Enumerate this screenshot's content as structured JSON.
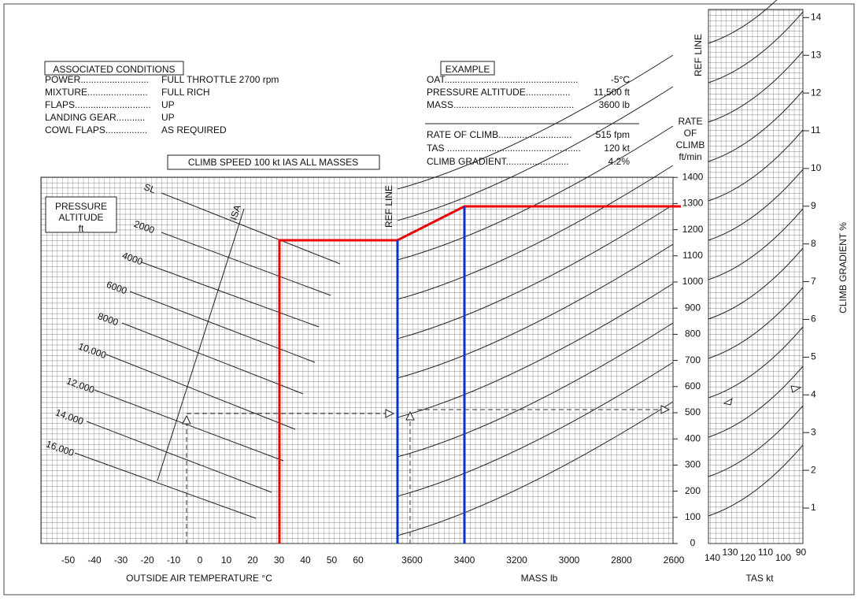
{
  "conditions": {
    "title": "ASSOCIATED CONDITIONS",
    "rows": [
      [
        "POWER..........................",
        "FULL THROTTLE  2700 rpm"
      ],
      [
        "MIXTURE.......................",
        "FULL RICH"
      ],
      [
        "FLAPS.............................",
        "UP"
      ],
      [
        "LANDING GEAR...........",
        "UP"
      ],
      [
        "COWL FLAPS................",
        "AS REQUIRED"
      ]
    ]
  },
  "example": {
    "title": "EXAMPLE",
    "rows": [
      [
        "OAT...................................................",
        "-5°C"
      ],
      [
        "PRESSURE ALTITUDE.................",
        "11,500 ft"
      ],
      [
        "MASS..............................................",
        "3600 lb"
      ]
    ],
    "results": [
      [
        "RATE OF CLIMB............................",
        "515 fpm"
      ],
      [
        "TAS ...................................................",
        "120 kt"
      ],
      [
        "CLIMB GRADIENT........................",
        "4.2%"
      ]
    ]
  },
  "climb_speed": "CLIMB SPEED  100 kt  IAS   ALL MASSES",
  "pressure_altitude": [
    "PRESSURE",
    "ALTITUDE",
    "ft"
  ],
  "altitudes": [
    "SL",
    "2000",
    "4000",
    "6000",
    "8000",
    "10,000",
    "12,000",
    "14,000",
    "16,000"
  ],
  "isa": "ISA",
  "ref_line": "REF LINE",
  "oat_axis": {
    "title": "OUTSIDE AIR TEMPERATURE  °C",
    "ticks": [
      -50,
      -40,
      -30,
      -20,
      -10,
      0,
      10,
      20,
      30,
      40,
      50,
      60
    ]
  },
  "mass_axis": {
    "title": "MASS lb",
    "ticks": [
      3600,
      3400,
      3200,
      3000,
      2800,
      2600
    ]
  },
  "roc_axis": {
    "title": [
      "RATE",
      "OF",
      "CLIMB",
      "ft/min"
    ],
    "ticks": [
      0,
      100,
      200,
      300,
      400,
      500,
      600,
      700,
      800,
      900,
      1000,
      1100,
      1200,
      1300,
      1400
    ]
  },
  "tas_axis": {
    "title": "TAS kt",
    "ticks": [
      140,
      130,
      120,
      110,
      100,
      90
    ]
  },
  "gradient_axis": {
    "title": "CLIMB GRADIENT  %",
    "ticks": [
      1,
      2,
      3,
      4,
      5,
      6,
      7,
      8,
      9,
      10,
      11,
      12,
      13,
      14
    ]
  }
}
